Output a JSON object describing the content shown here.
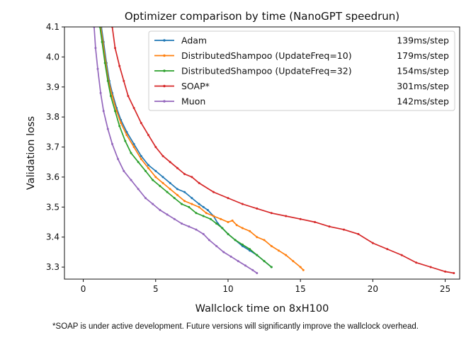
{
  "chart_data": {
    "type": "line",
    "title": "Optimizer comparison by time (NanoGPT speedrun)",
    "xlabel": "Wallclock time on 8xH100",
    "ylabel": "Validation loss",
    "xlim": [
      -1.3,
      26.0
    ],
    "ylim": [
      3.26,
      4.1
    ],
    "xticks": [
      0,
      5,
      10,
      15,
      20,
      25
    ],
    "yticks": [
      3.3,
      3.4,
      3.5,
      3.6,
      3.7,
      3.8,
      3.9,
      4.0,
      4.1
    ],
    "grid": false,
    "legend": "top-right",
    "series": [
      {
        "name": "Adam",
        "rate": "139ms/step",
        "color": "#1f77b4",
        "points": [
          [
            1.25,
            4.1
          ],
          [
            1.4,
            4.05
          ],
          [
            1.6,
            3.98
          ],
          [
            1.8,
            3.92
          ],
          [
            2.0,
            3.88
          ],
          [
            2.3,
            3.83
          ],
          [
            2.6,
            3.79
          ],
          [
            3.0,
            3.75
          ],
          [
            3.5,
            3.71
          ],
          [
            4.0,
            3.67
          ],
          [
            4.5,
            3.64
          ],
          [
            5.0,
            3.62
          ],
          [
            5.5,
            3.6
          ],
          [
            6.0,
            3.58
          ],
          [
            6.5,
            3.56
          ],
          [
            7.0,
            3.55
          ],
          [
            7.5,
            3.53
          ],
          [
            8.0,
            3.51
          ],
          [
            8.3,
            3.5
          ],
          [
            8.6,
            3.49
          ],
          [
            9.0,
            3.47
          ],
          [
            9.3,
            3.445
          ],
          [
            9.6,
            3.43
          ],
          [
            10.0,
            3.41
          ],
          [
            10.5,
            3.39
          ],
          [
            11.0,
            3.37
          ],
          [
            11.5,
            3.355
          ],
          [
            12.0,
            3.34
          ],
          [
            12.5,
            3.32
          ],
          [
            13.0,
            3.3
          ]
        ]
      },
      {
        "name": "DistributedShampoo (UpdateFreq=10)",
        "rate": "179ms/step",
        "color": "#ff7f0e",
        "points": [
          [
            1.2,
            4.1
          ],
          [
            1.35,
            4.05
          ],
          [
            1.55,
            3.98
          ],
          [
            1.75,
            3.92
          ],
          [
            2.0,
            3.87
          ],
          [
            2.3,
            3.82
          ],
          [
            2.6,
            3.78
          ],
          [
            3.0,
            3.74
          ],
          [
            3.5,
            3.7
          ],
          [
            4.0,
            3.66
          ],
          [
            4.5,
            3.63
          ],
          [
            5.0,
            3.6
          ],
          [
            5.5,
            3.58
          ],
          [
            6.0,
            3.56
          ],
          [
            6.5,
            3.54
          ],
          [
            7.0,
            3.52
          ],
          [
            7.5,
            3.51
          ],
          [
            8.0,
            3.5
          ],
          [
            8.5,
            3.48
          ],
          [
            9.0,
            3.47
          ],
          [
            9.5,
            3.46
          ],
          [
            10.0,
            3.45
          ],
          [
            10.3,
            3.455
          ],
          [
            10.6,
            3.44
          ],
          [
            11.0,
            3.43
          ],
          [
            11.5,
            3.42
          ],
          [
            12.0,
            3.4
          ],
          [
            12.5,
            3.39
          ],
          [
            13.0,
            3.37
          ],
          [
            13.5,
            3.355
          ],
          [
            14.0,
            3.34
          ],
          [
            14.5,
            3.32
          ],
          [
            15.0,
            3.3
          ],
          [
            15.2,
            3.29
          ]
        ]
      },
      {
        "name": "DistributedShampoo (UpdateFreq=32)",
        "rate": "154ms/step",
        "color": "#2ca02c",
        "points": [
          [
            1.15,
            4.1
          ],
          [
            1.3,
            4.05
          ],
          [
            1.5,
            3.98
          ],
          [
            1.7,
            3.92
          ],
          [
            1.9,
            3.87
          ],
          [
            2.2,
            3.82
          ],
          [
            2.5,
            3.77
          ],
          [
            2.9,
            3.72
          ],
          [
            3.3,
            3.68
          ],
          [
            3.8,
            3.65
          ],
          [
            4.3,
            3.62
          ],
          [
            4.8,
            3.59
          ],
          [
            5.3,
            3.57
          ],
          [
            5.8,
            3.55
          ],
          [
            6.3,
            3.53
          ],
          [
            6.8,
            3.51
          ],
          [
            7.3,
            3.5
          ],
          [
            7.8,
            3.48
          ],
          [
            8.3,
            3.47
          ],
          [
            8.8,
            3.46
          ],
          [
            9.2,
            3.445
          ],
          [
            9.6,
            3.43
          ],
          [
            10.0,
            3.41
          ],
          [
            10.5,
            3.39
          ],
          [
            11.0,
            3.375
          ],
          [
            11.5,
            3.36
          ],
          [
            12.0,
            3.34
          ],
          [
            12.5,
            3.32
          ],
          [
            13.0,
            3.3
          ]
        ]
      },
      {
        "name": "SOAP*",
        "rate": "301ms/step",
        "color": "#d62728",
        "points": [
          [
            2.0,
            4.1
          ],
          [
            2.2,
            4.03
          ],
          [
            2.5,
            3.97
          ],
          [
            2.8,
            3.92
          ],
          [
            3.1,
            3.87
          ],
          [
            3.5,
            3.83
          ],
          [
            4.0,
            3.78
          ],
          [
            4.5,
            3.74
          ],
          [
            5.0,
            3.7
          ],
          [
            5.5,
            3.67
          ],
          [
            6.0,
            3.65
          ],
          [
            6.5,
            3.63
          ],
          [
            7.0,
            3.61
          ],
          [
            7.5,
            3.6
          ],
          [
            8.0,
            3.58
          ],
          [
            9.0,
            3.55
          ],
          [
            10.0,
            3.53
          ],
          [
            11.0,
            3.51
          ],
          [
            12.0,
            3.495
          ],
          [
            13.0,
            3.48
          ],
          [
            14.0,
            3.47
          ],
          [
            15.0,
            3.46
          ],
          [
            16.0,
            3.45
          ],
          [
            17.0,
            3.435
          ],
          [
            18.0,
            3.425
          ],
          [
            19.0,
            3.41
          ],
          [
            20.0,
            3.38
          ],
          [
            21.0,
            3.36
          ],
          [
            22.0,
            3.34
          ],
          [
            23.0,
            3.315
          ],
          [
            24.0,
            3.3
          ],
          [
            25.0,
            3.285
          ],
          [
            25.6,
            3.28
          ]
        ]
      },
      {
        "name": "Muon",
        "rate": "142ms/step",
        "color": "#9467bd",
        "points": [
          [
            0.75,
            4.1
          ],
          [
            0.85,
            4.03
          ],
          [
            1.0,
            3.96
          ],
          [
            1.2,
            3.88
          ],
          [
            1.4,
            3.82
          ],
          [
            1.7,
            3.76
          ],
          [
            2.0,
            3.71
          ],
          [
            2.4,
            3.66
          ],
          [
            2.8,
            3.62
          ],
          [
            3.3,
            3.59
          ],
          [
            3.8,
            3.56
          ],
          [
            4.3,
            3.53
          ],
          [
            4.8,
            3.51
          ],
          [
            5.3,
            3.49
          ],
          [
            5.8,
            3.475
          ],
          [
            6.3,
            3.46
          ],
          [
            6.8,
            3.445
          ],
          [
            7.3,
            3.435
          ],
          [
            7.8,
            3.425
          ],
          [
            8.3,
            3.41
          ],
          [
            8.7,
            3.39
          ],
          [
            9.2,
            3.37
          ],
          [
            9.7,
            3.35
          ],
          [
            10.2,
            3.335
          ],
          [
            10.7,
            3.32
          ],
          [
            11.2,
            3.305
          ],
          [
            11.7,
            3.29
          ],
          [
            12.0,
            3.28
          ]
        ]
      }
    ]
  },
  "footnote": "*SOAP is under active development. Future versions will significantly improve the wallclock overhead."
}
